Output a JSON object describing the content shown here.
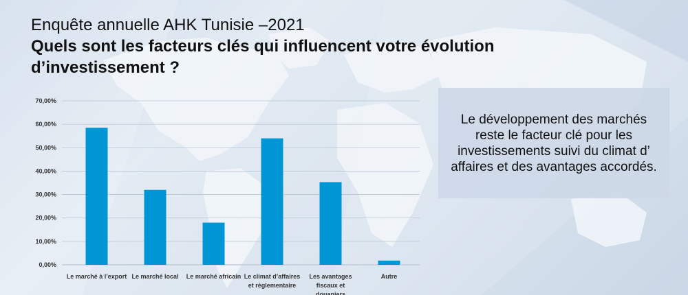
{
  "header": {
    "subtitle": "Enquête annuelle AHK Tunisie –2021",
    "question": "Quels sont les facteurs clés qui influencent votre évolution d’investissement ?"
  },
  "callout": {
    "text": "Le développement des marchés reste le facteur clé pour les investissements suivi du climat d’ affaires et des avantages accordés."
  },
  "colors": {
    "bar": "#0096d6",
    "grid": "#b9c5d3",
    "axis_text": "#333333"
  },
  "chart_data": {
    "type": "bar",
    "title": "",
    "xlabel": "",
    "ylabel": "",
    "ylim": [
      0,
      70
    ],
    "y_ticks": [
      "0,00%",
      "10,00%",
      "20,00%",
      "30,00%",
      "40,00%",
      "50,00%",
      "60,00%",
      "70,00%"
    ],
    "grid": true,
    "legend": "none",
    "categories": [
      [
        "Le marché à l’export"
      ],
      [
        "Le marché local"
      ],
      [
        "Le marché africain"
      ],
      [
        "Le climat d’affaires",
        "et règlementaire"
      ],
      [
        "Les avantages",
        "fiscaux et",
        "douaniers"
      ],
      [
        "Autre"
      ]
    ],
    "values": [
      58.5,
      32,
      18,
      54,
      35.3,
      1.8
    ]
  }
}
